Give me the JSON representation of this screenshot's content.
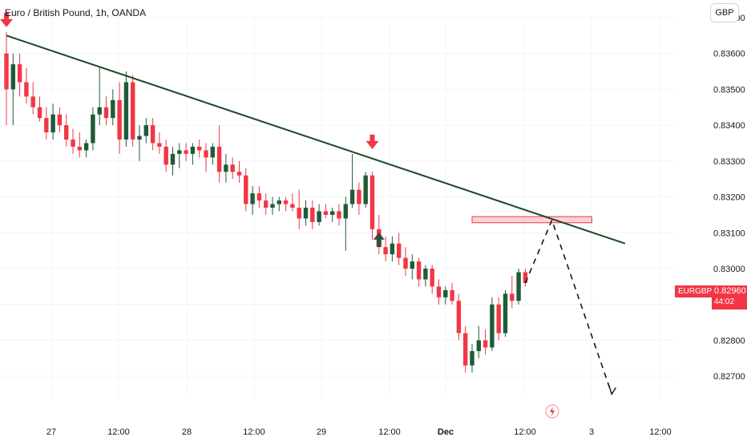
{
  "header": {
    "title": "Euro / British Pound, 1h, OANDA"
  },
  "toolbar": {
    "currency_label": "GBP"
  },
  "colors": {
    "up": "#089981",
    "down": "#f23645",
    "upAlt": "#1e5b3a",
    "trend": "#1b4a25",
    "zone": "#f23645"
  },
  "price_label": {
    "symbol": "EURGBP",
    "price": "0.82960",
    "countdown": "44:02"
  },
  "chart_data": {
    "type": "candlestick",
    "title": "Euro / British Pound, 1h, OANDA",
    "y_ticks": [
      "0.83700",
      "0.83600",
      "0.83500",
      "0.83400",
      "0.83300",
      "0.83200",
      "0.83100",
      "0.83000",
      "0.82900",
      "0.82800",
      "0.82700"
    ],
    "x_ticks": [
      "27",
      "12:00",
      "28",
      "12:00",
      "29",
      "12:00",
      "Dec",
      "12:00",
      "3",
      "12:00"
    ],
    "ylim": [
      0.8264,
      0.837
    ],
    "candles": [
      [
        0.836,
        0.8366,
        0.834,
        0.835
      ],
      [
        0.835,
        0.836,
        0.834,
        0.8357
      ],
      [
        0.8357,
        0.836,
        0.8348,
        0.8352
      ],
      [
        0.8352,
        0.8356,
        0.8346,
        0.8348
      ],
      [
        0.8348,
        0.8352,
        0.8343,
        0.8345
      ],
      [
        0.8345,
        0.8348,
        0.8341,
        0.8342
      ],
      [
        0.8342,
        0.8345,
        0.8336,
        0.8338
      ],
      [
        0.8338,
        0.8346,
        0.8336,
        0.8343
      ],
      [
        0.8343,
        0.8345,
        0.8338,
        0.834
      ],
      [
        0.834,
        0.8343,
        0.8334,
        0.8336
      ],
      [
        0.8336,
        0.8339,
        0.8332,
        0.8334
      ],
      [
        0.8334,
        0.8338,
        0.8331,
        0.8333
      ],
      [
        0.8333,
        0.8336,
        0.8331,
        0.8335
      ],
      [
        0.8335,
        0.8345,
        0.8333,
        0.8343
      ],
      [
        0.8343,
        0.8356,
        0.834,
        0.8345
      ],
      [
        0.8345,
        0.8348,
        0.834,
        0.8342
      ],
      [
        0.8342,
        0.835,
        0.834,
        0.8347
      ],
      [
        0.8347,
        0.8352,
        0.8332,
        0.8336
      ],
      [
        0.8336,
        0.8355,
        0.8334,
        0.8352
      ],
      [
        0.8352,
        0.8354,
        0.8334,
        0.8336
      ],
      [
        0.8336,
        0.834,
        0.833,
        0.8337
      ],
      [
        0.8337,
        0.8342,
        0.8335,
        0.834
      ],
      [
        0.834,
        0.8342,
        0.8333,
        0.8335
      ],
      [
        0.8335,
        0.8338,
        0.8332,
        0.8334
      ],
      [
        0.8334,
        0.8336,
        0.8327,
        0.8329
      ],
      [
        0.8329,
        0.8334,
        0.8326,
        0.8332
      ],
      [
        0.8332,
        0.8335,
        0.8328,
        0.8333
      ],
      [
        0.8333,
        0.8335,
        0.833,
        0.8332
      ],
      [
        0.8332,
        0.8335,
        0.8329,
        0.8334
      ],
      [
        0.8334,
        0.8336,
        0.8331,
        0.8333
      ],
      [
        0.8333,
        0.8335,
        0.8327,
        0.8331
      ],
      [
        0.8331,
        0.8335,
        0.8329,
        0.8334
      ],
      [
        0.8334,
        0.834,
        0.8324,
        0.8327
      ],
      [
        0.8327,
        0.8332,
        0.8324,
        0.8329
      ],
      [
        0.8329,
        0.8331,
        0.8325,
        0.8327
      ],
      [
        0.8327,
        0.833,
        0.8324,
        0.8326
      ],
      [
        0.8326,
        0.8328,
        0.8316,
        0.8318
      ],
      [
        0.8318,
        0.8323,
        0.8315,
        0.8321
      ],
      [
        0.8321,
        0.8323,
        0.8317,
        0.8319
      ],
      [
        0.8319,
        0.8321,
        0.8315,
        0.8317
      ],
      [
        0.8317,
        0.832,
        0.8315,
        0.8318
      ],
      [
        0.8318,
        0.832,
        0.8316,
        0.8319
      ],
      [
        0.8319,
        0.832,
        0.8316,
        0.8318
      ],
      [
        0.8318,
        0.8321,
        0.8316,
        0.8317
      ],
      [
        0.8317,
        0.8322,
        0.8311,
        0.8314
      ],
      [
        0.8314,
        0.8319,
        0.8312,
        0.8317
      ],
      [
        0.8317,
        0.8319,
        0.8311,
        0.8313
      ],
      [
        0.8313,
        0.8318,
        0.8312,
        0.8316
      ],
      [
        0.8316,
        0.8318,
        0.8314,
        0.8315
      ],
      [
        0.8315,
        0.8317,
        0.8313,
        0.8316
      ],
      [
        0.8316,
        0.8318,
        0.8312,
        0.8314
      ],
      [
        0.8314,
        0.832,
        0.8305,
        0.8318
      ],
      [
        0.8318,
        0.8332,
        0.8317,
        0.8322
      ],
      [
        0.8322,
        0.8324,
        0.8315,
        0.8318
      ],
      [
        0.8318,
        0.8327,
        0.8317,
        0.8326
      ],
      [
        0.8326,
        0.8327,
        0.8308,
        0.8311
      ],
      [
        0.8311,
        0.8315,
        0.8304,
        0.8306
      ],
      [
        0.8306,
        0.8309,
        0.8302,
        0.8304
      ],
      [
        0.8304,
        0.8309,
        0.8302,
        0.8307
      ],
      [
        0.8307,
        0.831,
        0.8301,
        0.8303
      ],
      [
        0.8303,
        0.8306,
        0.8298,
        0.83
      ],
      [
        0.83,
        0.8304,
        0.8297,
        0.8302
      ],
      [
        0.8302,
        0.8303,
        0.8295,
        0.8297
      ],
      [
        0.8297,
        0.8301,
        0.8295,
        0.83
      ],
      [
        0.83,
        0.8301,
        0.8293,
        0.8295
      ],
      [
        0.8295,
        0.8297,
        0.829,
        0.8292
      ],
      [
        0.8292,
        0.8295,
        0.829,
        0.8294
      ],
      [
        0.8294,
        0.8296,
        0.829,
        0.8291
      ],
      [
        0.8291,
        0.8293,
        0.828,
        0.8282
      ],
      [
        0.8282,
        0.8284,
        0.8271,
        0.8273
      ],
      [
        0.8273,
        0.8279,
        0.8271,
        0.8277
      ],
      [
        0.8277,
        0.8284,
        0.8275,
        0.828
      ],
      [
        0.828,
        0.8283,
        0.8276,
        0.8278
      ],
      [
        0.8278,
        0.8292,
        0.8277,
        0.829
      ],
      [
        0.829,
        0.8292,
        0.828,
        0.8282
      ],
      [
        0.8282,
        0.8294,
        0.8281,
        0.8293
      ],
      [
        0.8293,
        0.8298,
        0.8289,
        0.8291
      ],
      [
        0.8291,
        0.83,
        0.829,
        0.8299
      ],
      [
        0.8299,
        0.83,
        0.8295,
        0.8296
      ]
    ],
    "trendline": {
      "from": [
        0,
        0.8365
      ],
      "to": [
        93,
        0.8307
      ]
    },
    "zone": {
      "from": 70,
      "to": 88,
      "top": 0.83145,
      "bottom": 0.83128
    },
    "projection": [
      [
        78,
        0.8296
      ],
      [
        82,
        0.83135
      ],
      [
        91,
        0.8265
      ]
    ],
    "down_arrows": [
      [
        0,
        0.8366
      ],
      [
        55,
        0.8332
      ]
    ],
    "up_arrow": [
      56,
      0.8311
    ]
  }
}
